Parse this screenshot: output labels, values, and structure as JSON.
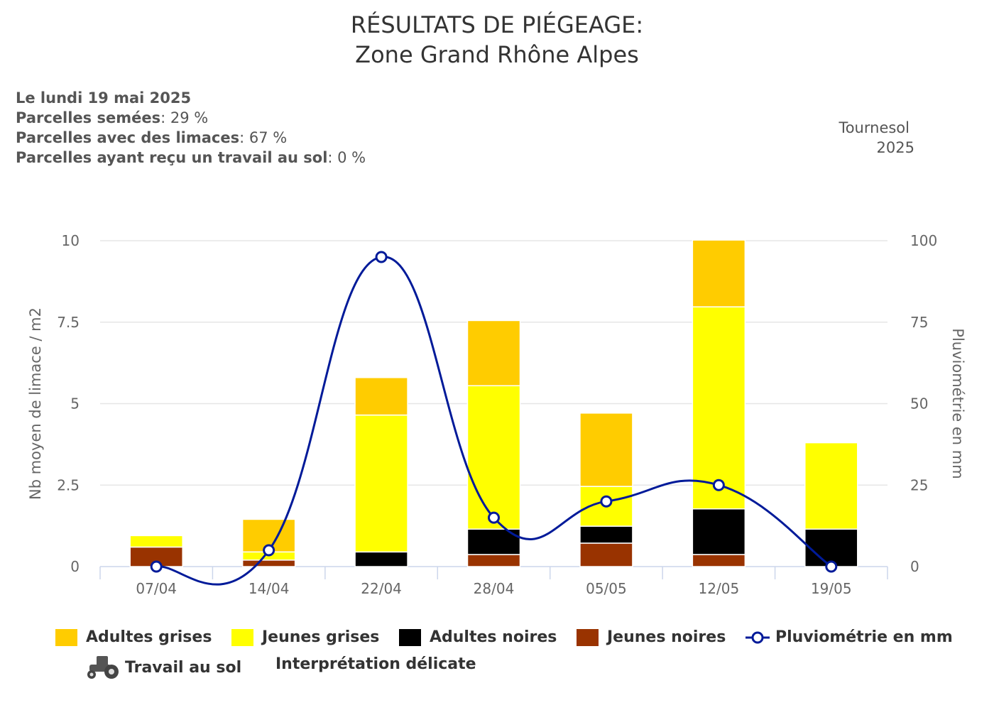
{
  "title_line1": "RÉSULTATS DE PIÉGEAGE:",
  "title_line2": "Zone Grand Rhône Alpes",
  "info": {
    "date": "Le lundi 19 mai 2025",
    "semees_label": "Parcelles semées",
    "semees_value": ": 29 %",
    "limaces_label": "Parcelles avec des limaces",
    "limaces_value": ": 67 %",
    "travail_label": "Parcelles ayant reçu un travail au sol",
    "travail_value": ": 0 %"
  },
  "crop": {
    "name": "Tournesol",
    "year": "2025"
  },
  "legend_extra": {
    "travail": "Travail au sol",
    "interpretation": "Interprétation délicate"
  },
  "chart_data": {
    "type": "bar",
    "stacked": true,
    "categories": [
      "07/04",
      "14/04",
      "22/04",
      "28/04",
      "05/05",
      "12/05",
      "19/05"
    ],
    "ylabel": "Nb moyen de limace / m2",
    "ylabel_right": "Pluviométrie en mm",
    "ylim": [
      0,
      10
    ],
    "yticks": [
      "0",
      "2.5",
      "5",
      "7.5",
      "10"
    ],
    "ylim_right": [
      0,
      100
    ],
    "yticks_right": [
      "0",
      "25",
      "50",
      "75",
      "100"
    ],
    "series": [
      {
        "name": "Jeunes noires",
        "color": "#993300",
        "values": [
          0.6,
          0.2,
          0,
          0.37,
          0.72,
          0.37,
          0
        ]
      },
      {
        "name": "Adultes noires",
        "color": "#000000",
        "values": [
          0,
          0,
          0.45,
          0.78,
          0.52,
          1.4,
          1.15
        ]
      },
      {
        "name": "Jeunes grises",
        "color": "#FFFF00",
        "values": [
          0.35,
          0.25,
          4.2,
          4.4,
          1.22,
          6.2,
          2.65
        ]
      },
      {
        "name": "Adultes grises",
        "color": "#FFCC00",
        "values": [
          0,
          1.0,
          1.15,
          2.0,
          2.25,
          2.05,
          0
        ]
      }
    ],
    "line": {
      "name": "Pluviométrie en mm",
      "color": "#001A99",
      "values": [
        0,
        5,
        95,
        15,
        20,
        25,
        0
      ]
    },
    "legend_order": [
      "Adultes grises",
      "Jeunes grises",
      "Adultes noires",
      "Jeunes noires"
    ]
  }
}
